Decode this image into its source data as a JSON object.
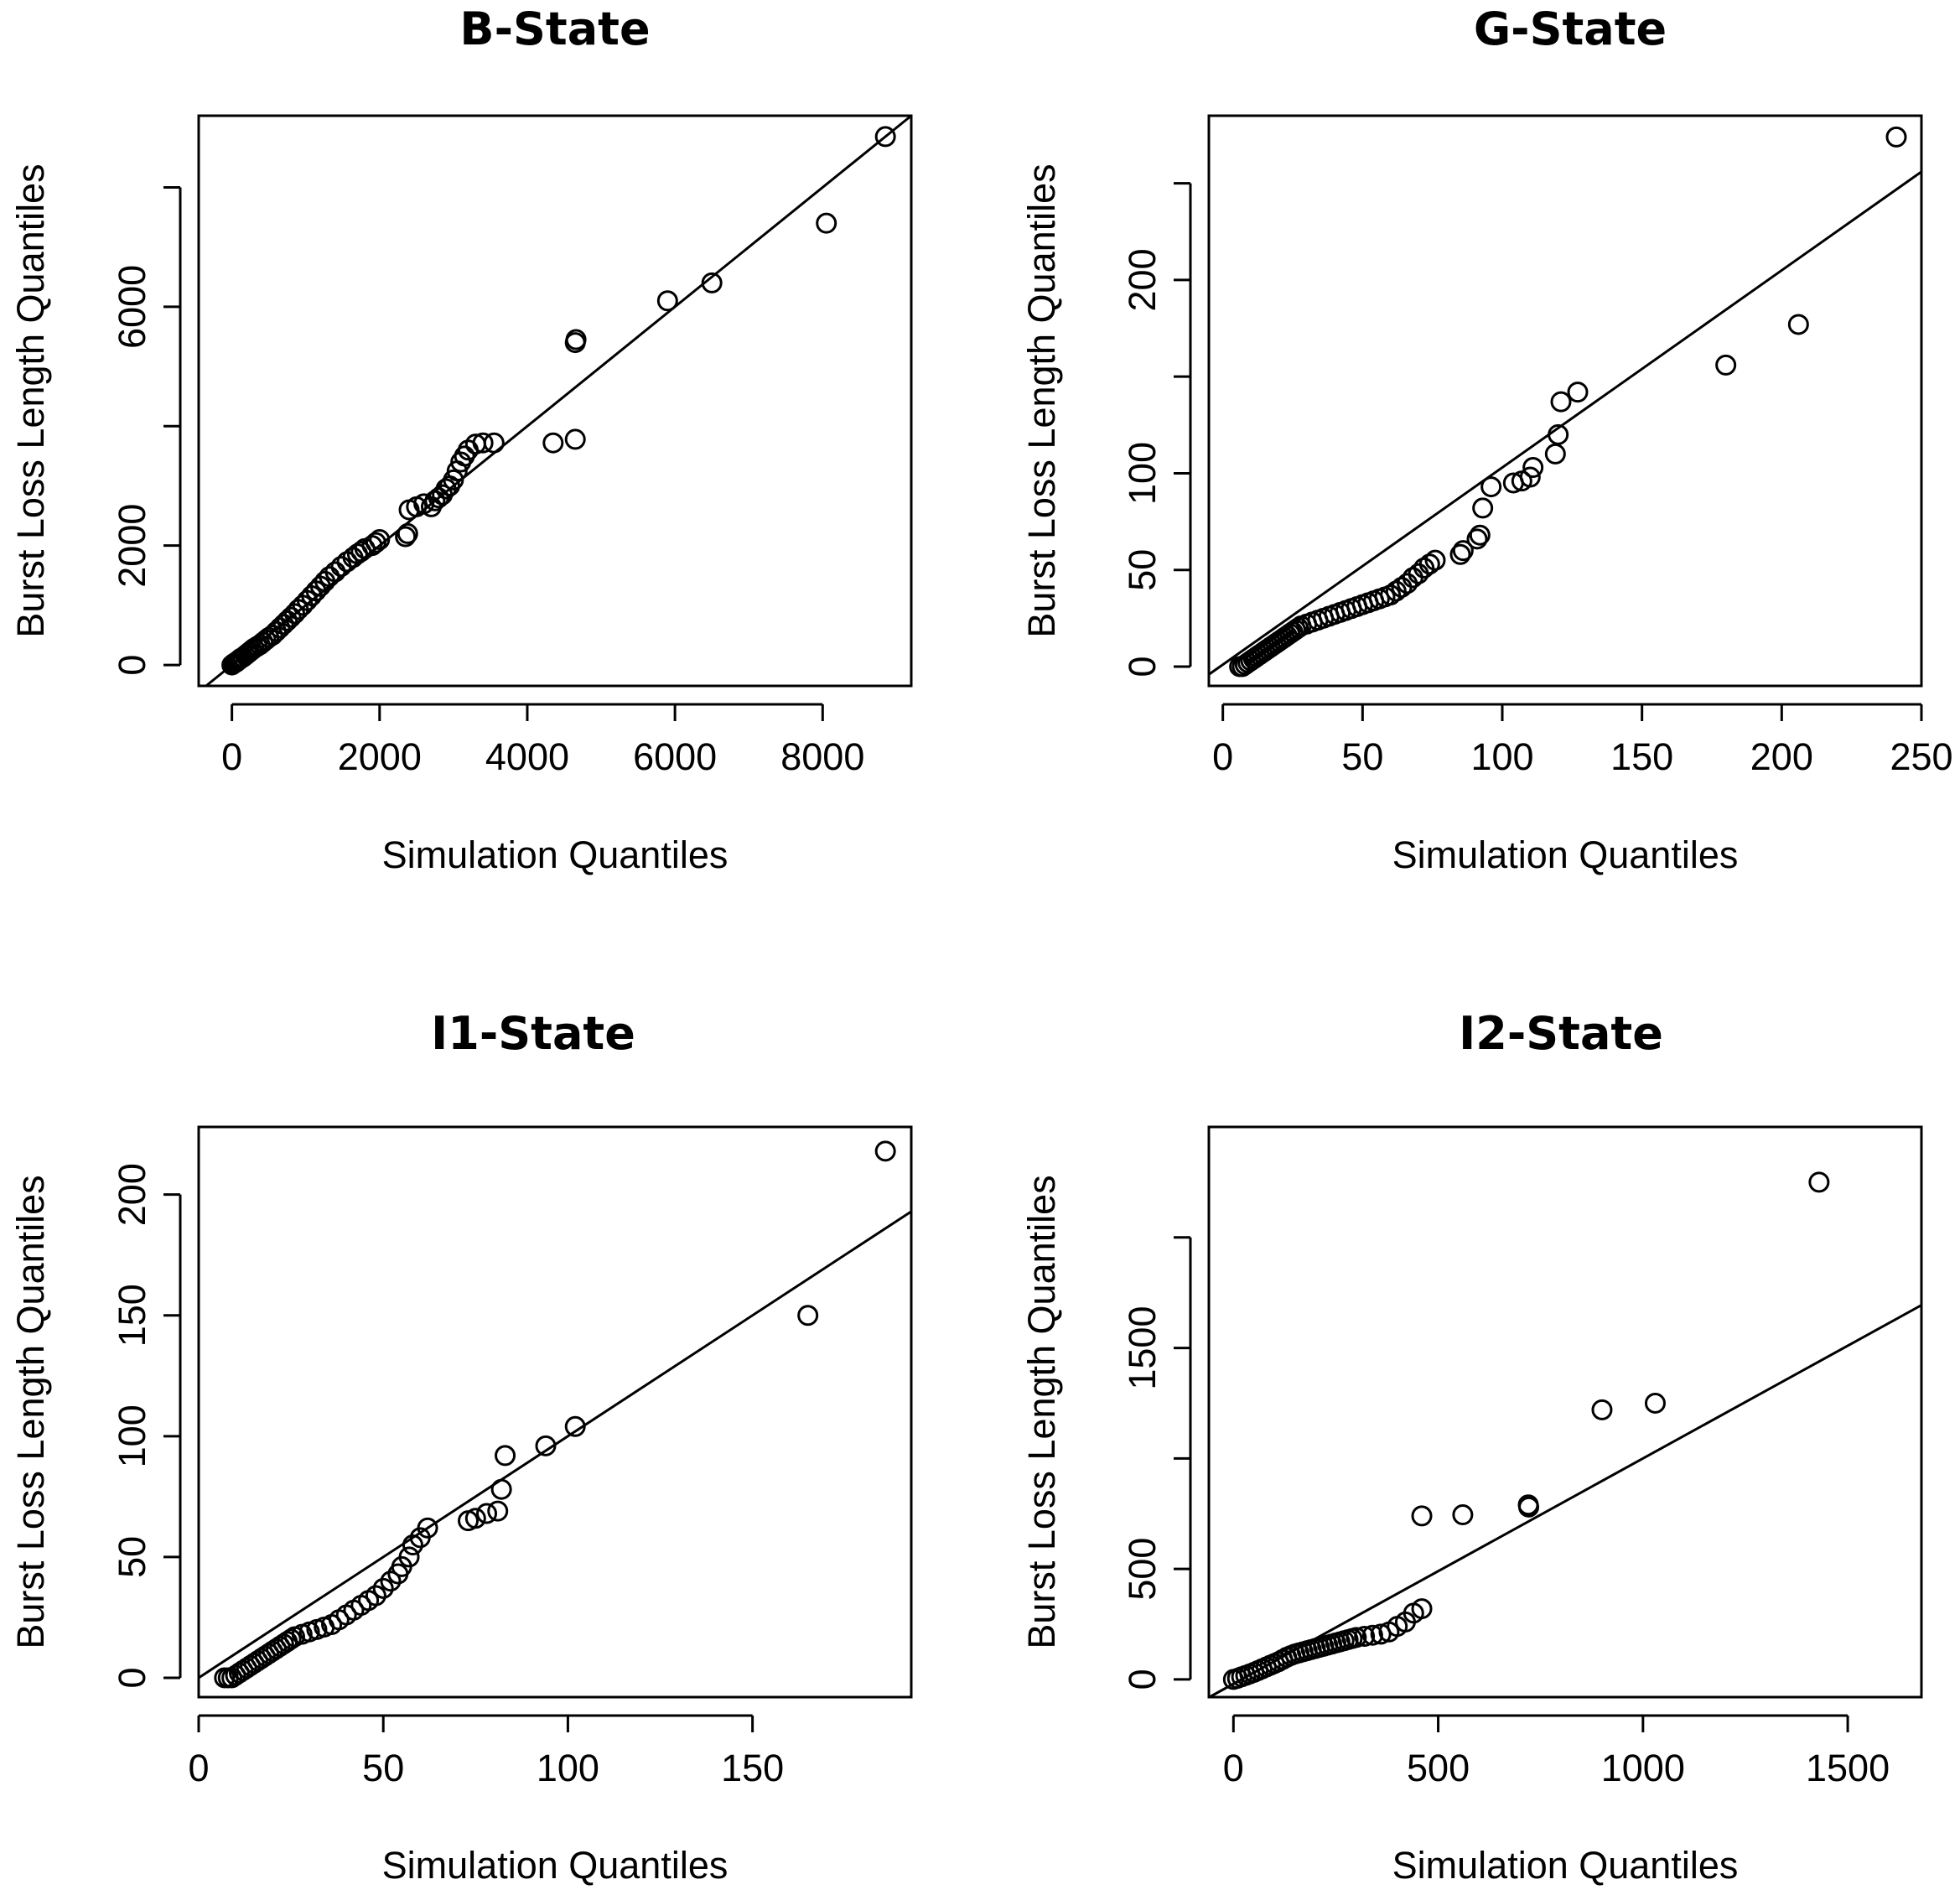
{
  "chart_data": [
    {
      "type": "scatter",
      "id": "b-state",
      "title": "B-State",
      "xlabel": "Simulation Quantiles",
      "ylabel": "Burst Loss Length Quantiles",
      "xlim": [
        -450,
        9200
      ],
      "ylim": [
        -350,
        9200
      ],
      "xticks": [
        0,
        2000,
        4000,
        6000,
        8000
      ],
      "yticks": [
        0,
        2000,
        6000
      ],
      "yticks_unlabeled": [
        4000,
        8000
      ],
      "ref_line": {
        "intercept": 0,
        "slope": 1.0
      },
      "points": [
        [
          0,
          0
        ],
        [
          20,
          20
        ],
        [
          40,
          35
        ],
        [
          60,
          50
        ],
        [
          80,
          70
        ],
        [
          100,
          90
        ],
        [
          120,
          110
        ],
        [
          150,
          130
        ],
        [
          180,
          160
        ],
        [
          210,
          190
        ],
        [
          240,
          220
        ],
        [
          270,
          250
        ],
        [
          300,
          280
        ],
        [
          340,
          310
        ],
        [
          380,
          340
        ],
        [
          420,
          380
        ],
        [
          460,
          420
        ],
        [
          500,
          460
        ],
        [
          550,
          500
        ],
        [
          600,
          560
        ],
        [
          650,
          620
        ],
        [
          700,
          680
        ],
        [
          750,
          740
        ],
        [
          800,
          800
        ],
        [
          850,
          860
        ],
        [
          900,
          930
        ],
        [
          960,
          1000
        ],
        [
          1020,
          1080
        ],
        [
          1080,
          1160
        ],
        [
          1140,
          1240
        ],
        [
          1200,
          1320
        ],
        [
          1260,
          1400
        ],
        [
          1320,
          1480
        ],
        [
          1400,
          1560
        ],
        [
          1480,
          1650
        ],
        [
          1560,
          1730
        ],
        [
          1640,
          1800
        ],
        [
          1700,
          1860
        ],
        [
          1750,
          1900
        ],
        [
          1800,
          1950
        ],
        [
          1900,
          2000
        ],
        [
          1950,
          2050
        ],
        [
          2000,
          2100
        ],
        [
          2350,
          2150
        ],
        [
          2380,
          2200
        ],
        [
          2400,
          2600
        ],
        [
          2500,
          2650
        ],
        [
          2600,
          2700
        ],
        [
          2700,
          2650
        ],
        [
          2750,
          2750
        ],
        [
          2800,
          2800
        ],
        [
          2850,
          2850
        ],
        [
          2900,
          2950
        ],
        [
          2950,
          3000
        ],
        [
          3000,
          3100
        ],
        [
          3050,
          3250
        ],
        [
          3100,
          3400
        ],
        [
          3150,
          3500
        ],
        [
          3200,
          3600
        ],
        [
          3300,
          3700
        ],
        [
          3400,
          3720
        ],
        [
          3550,
          3720
        ],
        [
          4350,
          3720
        ],
        [
          4650,
          3780
        ],
        [
          4650,
          5400
        ],
        [
          4660,
          5450
        ],
        [
          5900,
          6100
        ],
        [
          6500,
          6400
        ],
        [
          8050,
          7400
        ],
        [
          8850,
          8850
        ]
      ]
    },
    {
      "type": "scatter",
      "id": "g-state",
      "title": "G-State",
      "xlabel": "Simulation Quantiles",
      "ylabel": "Burst Loss Length Quantiles",
      "xlim": [
        -5,
        250
      ],
      "ylim": [
        -10,
        285
      ],
      "xticks": [
        0,
        50,
        100,
        150,
        200,
        250
      ],
      "yticks": [
        0,
        50,
        100,
        200
      ],
      "yticks_unlabeled": [
        150,
        250
      ],
      "ref_line": {
        "intercept": 1,
        "slope": 1.02
      },
      "points": [
        [
          6,
          0
        ],
        [
          7,
          0
        ],
        [
          8,
          1
        ],
        [
          9,
          2
        ],
        [
          10,
          3
        ],
        [
          11,
          4
        ],
        [
          12,
          5
        ],
        [
          13,
          6
        ],
        [
          14,
          7
        ],
        [
          15,
          8
        ],
        [
          16,
          9
        ],
        [
          17,
          10
        ],
        [
          18,
          11
        ],
        [
          19,
          12
        ],
        [
          20,
          13
        ],
        [
          21,
          14
        ],
        [
          22,
          15
        ],
        [
          23,
          16
        ],
        [
          24,
          17
        ],
        [
          25,
          18
        ],
        [
          26,
          19
        ],
        [
          27,
          20
        ],
        [
          28,
          21
        ],
        [
          30,
          22
        ],
        [
          32,
          23
        ],
        [
          34,
          24
        ],
        [
          36,
          25
        ],
        [
          38,
          26
        ],
        [
          40,
          27
        ],
        [
          42,
          28
        ],
        [
          44,
          29
        ],
        [
          46,
          30
        ],
        [
          48,
          31
        ],
        [
          50,
          32
        ],
        [
          52,
          33
        ],
        [
          54,
          34
        ],
        [
          56,
          35
        ],
        [
          58,
          36
        ],
        [
          60,
          37
        ],
        [
          62,
          39
        ],
        [
          64,
          41
        ],
        [
          66,
          43
        ],
        [
          68,
          46
        ],
        [
          70,
          48
        ],
        [
          72,
          51
        ],
        [
          74,
          53
        ],
        [
          76,
          55
        ],
        [
          85,
          58
        ],
        [
          86,
          60
        ],
        [
          91,
          66
        ],
        [
          92,
          68
        ],
        [
          93,
          82
        ],
        [
          96,
          93
        ],
        [
          104,
          95
        ],
        [
          107,
          96
        ],
        [
          110,
          98
        ],
        [
          111,
          103
        ],
        [
          119,
          110
        ],
        [
          120,
          120
        ],
        [
          121,
          137
        ],
        [
          127,
          142
        ],
        [
          180,
          156
        ],
        [
          206,
          177
        ],
        [
          241,
          274
        ]
      ]
    },
    {
      "type": "scatter",
      "id": "i1-state",
      "title": "I1-State",
      "xlabel": "Simulation Quantiles",
      "ylabel": "Burst Loss Length Quantiles",
      "xlim": [
        0,
        193
      ],
      "ylim": [
        -8,
        228
      ],
      "xticks": [
        0,
        50,
        100,
        150
      ],
      "yticks": [
        0,
        50,
        100,
        150,
        200
      ],
      "ref_line": {
        "intercept": 0,
        "slope": 1.0
      },
      "points": [
        [
          7,
          0
        ],
        [
          8,
          0
        ],
        [
          9,
          0
        ],
        [
          10,
          1
        ],
        [
          11,
          2
        ],
        [
          12,
          3
        ],
        [
          13,
          4
        ],
        [
          14,
          5
        ],
        [
          15,
          6
        ],
        [
          16,
          7
        ],
        [
          17,
          8
        ],
        [
          18,
          9
        ],
        [
          19,
          10
        ],
        [
          20,
          11
        ],
        [
          21,
          12
        ],
        [
          22,
          13
        ],
        [
          23,
          14
        ],
        [
          24,
          15
        ],
        [
          25,
          16
        ],
        [
          26,
          17
        ],
        [
          28,
          18
        ],
        [
          30,
          19
        ],
        [
          32,
          20
        ],
        [
          34,
          21
        ],
        [
          36,
          22
        ],
        [
          38,
          24
        ],
        [
          40,
          26
        ],
        [
          42,
          28
        ],
        [
          44,
          30
        ],
        [
          46,
          32
        ],
        [
          48,
          34
        ],
        [
          50,
          37
        ],
        [
          52,
          40
        ],
        [
          54,
          43
        ],
        [
          55,
          46
        ],
        [
          57,
          50
        ],
        [
          58,
          55
        ],
        [
          60,
          58
        ],
        [
          62,
          62
        ],
        [
          73,
          65
        ],
        [
          75,
          66
        ],
        [
          78,
          68
        ],
        [
          81,
          69
        ],
        [
          82,
          78
        ],
        [
          83,
          92
        ],
        [
          94,
          96
        ],
        [
          102,
          104
        ],
        [
          165,
          150
        ],
        [
          186,
          218
        ]
      ]
    },
    {
      "type": "scatter",
      "id": "i2-state",
      "title": "I2-State",
      "xlabel": "Simulation Quantiles",
      "ylabel": "Burst Loss Length Quantiles",
      "xlim": [
        -60,
        1680
      ],
      "ylim": [
        -80,
        2500
      ],
      "xticks": [
        0,
        500,
        1000,
        1500
      ],
      "yticks": [
        0,
        500,
        1500
      ],
      "yticks_unlabeled": [
        1000,
        2000
      ],
      "ref_line": {
        "intercept": -20,
        "slope": 1.02
      },
      "points": [
        [
          0,
          0
        ],
        [
          10,
          5
        ],
        [
          20,
          12
        ],
        [
          30,
          18
        ],
        [
          40,
          25
        ],
        [
          50,
          32
        ],
        [
          60,
          40
        ],
        [
          70,
          48
        ],
        [
          80,
          56
        ],
        [
          90,
          64
        ],
        [
          100,
          72
        ],
        [
          110,
          80
        ],
        [
          120,
          90
        ],
        [
          130,
          100
        ],
        [
          140,
          108
        ],
        [
          150,
          115
        ],
        [
          160,
          120
        ],
        [
          170,
          125
        ],
        [
          180,
          130
        ],
        [
          190,
          135
        ],
        [
          200,
          140
        ],
        [
          210,
          145
        ],
        [
          220,
          150
        ],
        [
          230,
          155
        ],
        [
          240,
          160
        ],
        [
          250,
          165
        ],
        [
          260,
          170
        ],
        [
          270,
          175
        ],
        [
          280,
          180
        ],
        [
          290,
          185
        ],
        [
          300,
          190
        ],
        [
          320,
          195
        ],
        [
          340,
          200
        ],
        [
          360,
          205
        ],
        [
          380,
          215
        ],
        [
          400,
          240
        ],
        [
          420,
          260
        ],
        [
          440,
          300
        ],
        [
          460,
          320
        ],
        [
          460,
          740
        ],
        [
          560,
          745
        ],
        [
          720,
          790
        ],
        [
          721,
          780
        ],
        [
          900,
          1220
        ],
        [
          1030,
          1250
        ],
        [
          1430,
          2250
        ]
      ]
    }
  ]
}
